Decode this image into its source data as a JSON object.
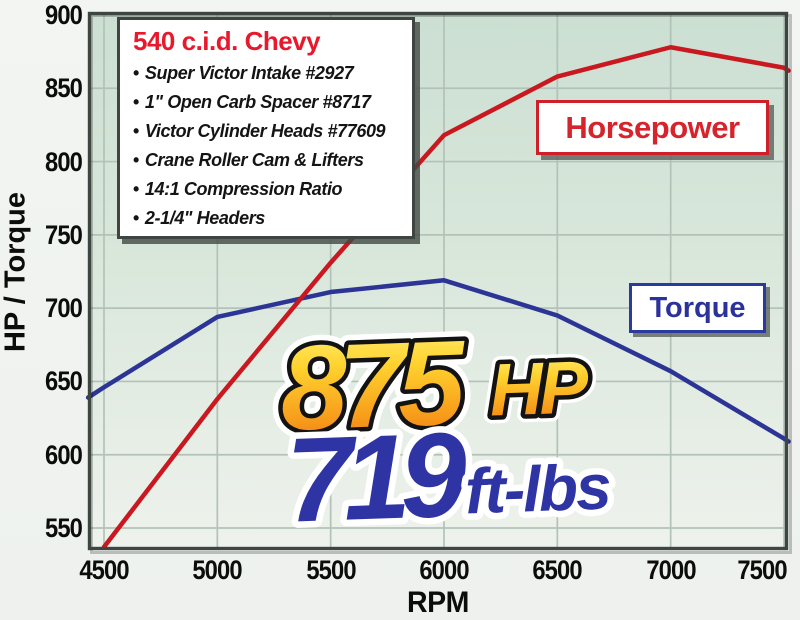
{
  "chart_data": {
    "type": "line",
    "title": "",
    "xlabel": "RPM",
    "ylabel": "HP / Torque",
    "x_ticks": [
      4500,
      5000,
      5500,
      6000,
      6500,
      7000,
      7500
    ],
    "y_ticks": [
      550,
      600,
      650,
      700,
      750,
      800,
      850,
      900
    ],
    "xlim": [
      4430,
      7520
    ],
    "ylim": [
      535,
      903
    ],
    "grid": true,
    "legend_position": "inline-boxes-on-plot",
    "series": [
      {
        "name": "Horsepower",
        "color": "#c9181f",
        "x": [
          4500,
          5000,
          5500,
          6000,
          6500,
          7000,
          7500,
          7520
        ],
        "values": [
          537,
          638,
          731,
          818,
          858,
          878,
          864,
          862
        ]
      },
      {
        "name": "Torque",
        "color": "#2c3596",
        "x": [
          4430,
          4500,
          5000,
          5500,
          6000,
          6500,
          7000,
          7500,
          7520
        ],
        "values": [
          639,
          646,
          694,
          711,
          719,
          695,
          657,
          611,
          609
        ]
      }
    ],
    "peak_hp": {
      "value": "875",
      "unit": "HP"
    },
    "peak_torque": {
      "value": "719",
      "unit": "ft-lbs"
    }
  },
  "curve_labels": {
    "horsepower": "Horsepower",
    "torque": "Torque"
  },
  "spec_box": {
    "title": "540 c.i.d. Chevy",
    "bullet": "•",
    "items": [
      "Super Victor Intake #2927",
      "1\" Open Carb Spacer #8717",
      "Victor Cylinder Heads #77609",
      "Crane Roller Cam & Lifters",
      "14:1 Compression Ratio",
      "2-1/4\" Headers"
    ]
  },
  "colors": {
    "plot_bg_top": "#cbdfd2",
    "plot_bg_bottom": "#eef2ec",
    "grid": "#b3c2b8",
    "border": "#3e4641",
    "hp_red": "#c9181f",
    "torque_blue": "#2c3596",
    "gold_top": "#fff37a",
    "gold_bottom": "#ef7012",
    "peak_torque_blue": "#2e34a4",
    "spec_title_red": "#e8192c"
  }
}
